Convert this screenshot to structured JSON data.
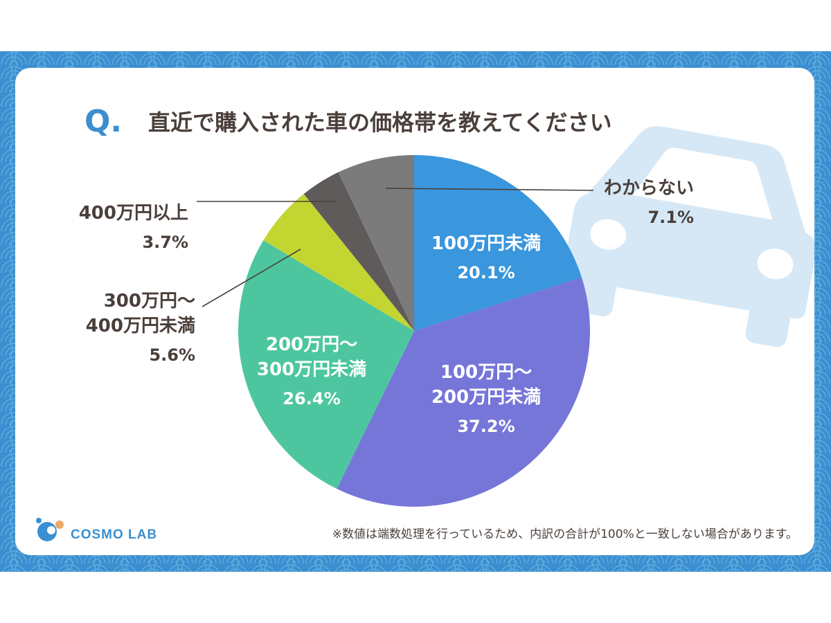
{
  "title": {
    "q_mark": "Q.",
    "text": "直近で購入された車の価格帯を教えてください"
  },
  "chart_data": {
    "type": "pie",
    "start": "12 o'clock",
    "direction": "clockwise",
    "slices": [
      {
        "label_lines": [
          "100万円未満"
        ],
        "value_text": "20.1%",
        "value": 20.1,
        "color": "#3a96dd",
        "label_inside": true
      },
      {
        "label_lines": [
          "100万円〜",
          "200万円未満"
        ],
        "value_text": "37.2%",
        "value": 37.2,
        "color": "#7676d9",
        "label_inside": true
      },
      {
        "label_lines": [
          "200万円〜",
          "300万円未満"
        ],
        "value_text": "26.4%",
        "value": 26.4,
        "color": "#4dc6a0",
        "label_inside": true
      },
      {
        "label_lines": [
          "300万円〜",
          "400万円未満"
        ],
        "value_text": "5.6%",
        "value": 5.6,
        "color": "#c2d531",
        "label_inside": false
      },
      {
        "label_lines": [
          "400万円以上"
        ],
        "value_text": "3.7%",
        "value": 3.7,
        "color": "#5f5b5b",
        "label_inside": false
      },
      {
        "label_lines": [
          "わからない"
        ],
        "value_text": "7.1%",
        "value": 7.1,
        "color": "#7b7b7b",
        "label_inside": false
      }
    ]
  },
  "footnote": "※数値は端数処理を行っているため、内訳の合計が100%と一致しない場合があります。",
  "logo": {
    "text": "COSMO LAB",
    "color_main": "#3b8fd0",
    "color_accent": "#f0a868"
  },
  "colors": {
    "frame": "#3b8fd0",
    "title": "#4a3f3a",
    "label_dark": "#4a3f3a",
    "label_light": "#ffffff",
    "car": "#d6e8f6"
  }
}
